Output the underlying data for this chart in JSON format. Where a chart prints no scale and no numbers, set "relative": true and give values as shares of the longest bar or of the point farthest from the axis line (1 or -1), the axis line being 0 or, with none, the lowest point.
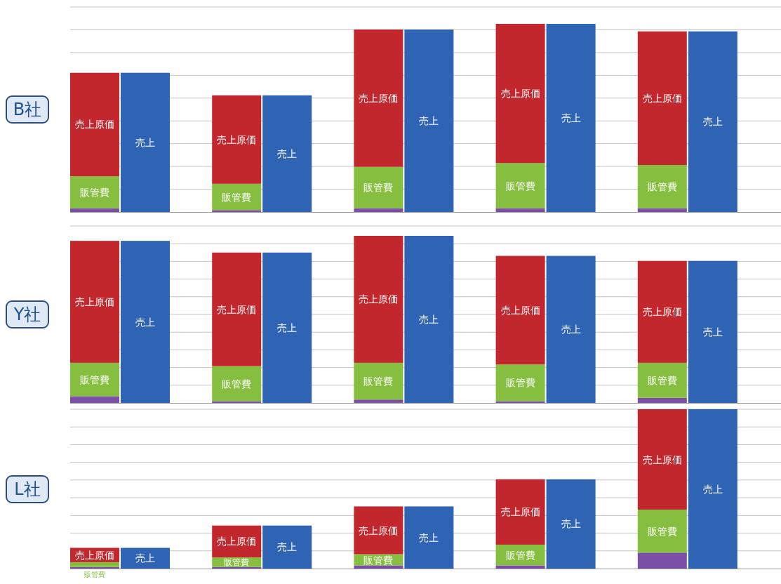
{
  "chart_data": [
    {
      "type": "bar",
      "title": "B社",
      "relative": true,
      "stacked": true,
      "grid": "y",
      "categories": [
        null,
        null,
        null,
        null,
        null,
        null,
        null,
        null,
        null,
        null
      ],
      "series": [
        {
          "color": "#7b4fa6",
          "values": [
            0.02,
            null,
            0.01,
            null,
            0.02,
            null,
            0.02,
            null,
            0.02,
            null
          ]
        },
        {
          "name": "販管費",
          "color": "#86bf3f",
          "values": [
            0.17,
            null,
            0.14,
            null,
            0.22,
            null,
            0.24,
            null,
            0.23,
            null
          ]
        },
        {
          "name": "売上原価",
          "color": "#c1272d",
          "values": [
            0.55,
            null,
            0.47,
            null,
            0.73,
            null,
            0.74,
            null,
            0.71,
            null
          ]
        },
        {
          "name": "売上",
          "color": "#2f63b3",
          "values": [
            null,
            0.74,
            null,
            0.62,
            null,
            0.97,
            null,
            1.0,
            null,
            0.96
          ]
        }
      ]
    },
    {
      "type": "bar",
      "title": "Y社",
      "relative": true,
      "stacked": true,
      "grid": "y",
      "categories": [
        null,
        null,
        null,
        null,
        null,
        null,
        null,
        null,
        null,
        null
      ],
      "series": [
        {
          "color": "#7b4fa6",
          "values": [
            0.04,
            null,
            0.01,
            null,
            0.02,
            null,
            0.01,
            null,
            0.03,
            null
          ]
        },
        {
          "name": "販管費",
          "color": "#86bf3f",
          "values": [
            0.2,
            null,
            0.21,
            null,
            0.22,
            null,
            0.22,
            null,
            0.21,
            null
          ]
        },
        {
          "name": "売上原価",
          "color": "#c1272d",
          "values": [
            0.73,
            null,
            0.68,
            null,
            0.76,
            null,
            0.65,
            null,
            0.61,
            null
          ]
        },
        {
          "name": "売上",
          "color": "#2f63b3",
          "values": [
            null,
            0.97,
            null,
            0.9,
            null,
            1.0,
            null,
            0.88,
            null,
            0.85
          ]
        }
      ]
    },
    {
      "type": "bar",
      "title": "L社",
      "relative": true,
      "stacked": true,
      "grid": "y",
      "categories": [
        null,
        null,
        null,
        null,
        null,
        null,
        null,
        null,
        null,
        null
      ],
      "series": [
        {
          "color": "#7b4fa6",
          "values": [
            0.01,
            null,
            0.01,
            null,
            0.02,
            null,
            0.02,
            null,
            0.1,
            null
          ]
        },
        {
          "name": "販管費",
          "color": "#86bf3f",
          "values": [
            0.03,
            null,
            0.06,
            null,
            0.07,
            null,
            0.13,
            null,
            0.27,
            null
          ]
        },
        {
          "name": "売上原価",
          "color": "#c1272d",
          "values": [
            0.09,
            null,
            0.2,
            null,
            0.3,
            null,
            0.41,
            null,
            0.63,
            null
          ]
        },
        {
          "name": "売上",
          "color": "#2f63b3",
          "values": [
            null,
            0.13,
            null,
            0.27,
            null,
            0.39,
            null,
            0.56,
            null,
            1.0
          ]
        }
      ]
    }
  ]
}
